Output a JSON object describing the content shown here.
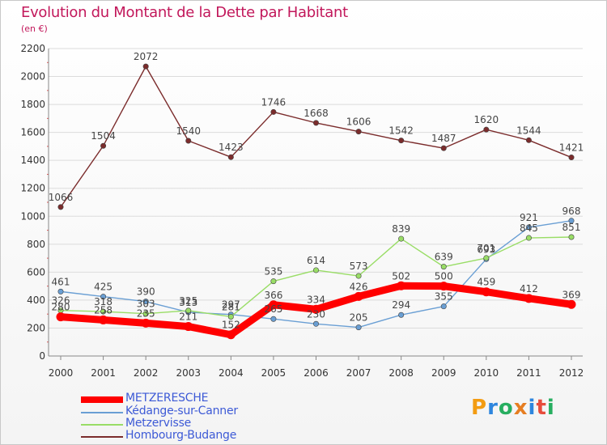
{
  "title": "Evolution du Montant de la Dette par Habitant",
  "subtitle": "(en €)",
  "logo": {
    "letters": [
      "P",
      "r",
      "o",
      "x",
      "i",
      "t",
      "i"
    ],
    "colors": [
      "#f39c12",
      "#2e86de",
      "#27ae60",
      "#e67e22",
      "#2e86de",
      "#e74c3c",
      "#27ae60"
    ]
  },
  "chart_data": {
    "type": "line",
    "x": [
      "2000",
      "2001",
      "2002",
      "2003",
      "2004",
      "2005",
      "2006",
      "2007",
      "2008",
      "2009",
      "2010",
      "2011",
      "2012"
    ],
    "ylim": [
      0,
      2200
    ],
    "yticks": [
      0,
      200,
      400,
      600,
      800,
      1000,
      1200,
      1400,
      1600,
      1800,
      2000,
      2200
    ],
    "grid": "horizontal",
    "legend_position": "bottom-left",
    "series": [
      {
        "name": "METZERESCHE",
        "color": "#ff0000",
        "values": [
          280,
          258,
          235,
          211,
          152,
          366,
          334,
          426,
          502,
          500,
          459,
          412,
          369
        ]
      },
      {
        "name": "Kédange-sur-Canner",
        "color": "#6a9fd4",
        "values": [
          461,
          425,
          390,
          313,
          297,
          265,
          230,
          205,
          294,
          355,
          693,
          921,
          968
        ]
      },
      {
        "name": "Metzervisse",
        "color": "#99dd66",
        "values": [
          326,
          318,
          303,
          325,
          281,
          535,
          614,
          573,
          839,
          639,
          701,
          845,
          851
        ]
      },
      {
        "name": "Hombourg-Budange",
        "color": "#7b2c2c",
        "values": [
          1066,
          1504,
          2072,
          1540,
          1423,
          1746,
          1668,
          1606,
          1542,
          1487,
          1620,
          1544,
          1421
        ]
      }
    ]
  }
}
